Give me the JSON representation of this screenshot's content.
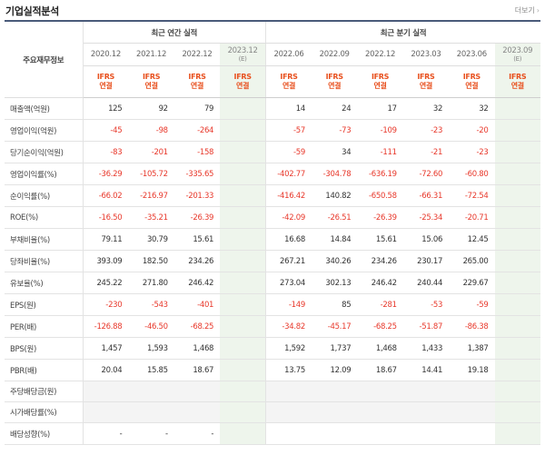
{
  "section_title": "기업실적분석",
  "more_label": "더보기",
  "header": {
    "corner_label": "주요재무정보",
    "annual_group": "최근 연간 실적",
    "quarter_group": "최근 분기 실적",
    "estimate_mark": "(E)",
    "ifrs_line1": "IFRS",
    "ifrs_line2": "연결",
    "annual_periods": [
      "2020.12",
      "2021.12",
      "2022.12",
      "2023.12"
    ],
    "quarter_periods": [
      "2022.06",
      "2022.09",
      "2022.12",
      "2023.03",
      "2023.06",
      "2023.09"
    ]
  },
  "rows": [
    {
      "label": "매출액(억원)",
      "annual": [
        "125",
        "92",
        "79",
        ""
      ],
      "quarter": [
        "14",
        "24",
        "17",
        "32",
        "32",
        ""
      ]
    },
    {
      "label": "영업이익(억원)",
      "annual": [
        "-45",
        "-98",
        "-264",
        ""
      ],
      "quarter": [
        "-57",
        "-73",
        "-109",
        "-23",
        "-20",
        ""
      ]
    },
    {
      "label": "당기순이익(억원)",
      "annual": [
        "-83",
        "-201",
        "-158",
        ""
      ],
      "quarter": [
        "-59",
        "34",
        "-111",
        "-21",
        "-23",
        ""
      ]
    },
    {
      "label": "영업이익률(%)",
      "annual": [
        "-36.29",
        "-105.72",
        "-335.65",
        ""
      ],
      "quarter": [
        "-402.77",
        "-304.78",
        "-636.19",
        "-72.60",
        "-60.80",
        ""
      ]
    },
    {
      "label": "순이익률(%)",
      "annual": [
        "-66.02",
        "-216.97",
        "-201.33",
        ""
      ],
      "quarter": [
        "-416.42",
        "140.82",
        "-650.58",
        "-66.31",
        "-72.54",
        ""
      ]
    },
    {
      "label": "ROE(%)",
      "annual": [
        "-16.50",
        "-35.21",
        "-26.39",
        ""
      ],
      "quarter": [
        "-42.09",
        "-26.51",
        "-26.39",
        "-25.34",
        "-20.71",
        ""
      ]
    },
    {
      "label": "부채비율(%)",
      "annual": [
        "79.11",
        "30.79",
        "15.61",
        ""
      ],
      "quarter": [
        "16.68",
        "14.84",
        "15.61",
        "15.06",
        "12.45",
        ""
      ]
    },
    {
      "label": "당좌비율(%)",
      "annual": [
        "393.09",
        "182.50",
        "234.26",
        ""
      ],
      "quarter": [
        "267.21",
        "340.26",
        "234.26",
        "230.17",
        "265.00",
        ""
      ]
    },
    {
      "label": "유보율(%)",
      "annual": [
        "245.22",
        "271.80",
        "246.42",
        ""
      ],
      "quarter": [
        "273.04",
        "302.13",
        "246.42",
        "240.44",
        "229.67",
        ""
      ]
    },
    {
      "label": "EPS(원)",
      "annual": [
        "-230",
        "-543",
        "-401",
        ""
      ],
      "quarter": [
        "-149",
        "85",
        "-281",
        "-53",
        "-59",
        ""
      ]
    },
    {
      "label": "PER(배)",
      "annual": [
        "-126.88",
        "-46.50",
        "-68.25",
        ""
      ],
      "quarter": [
        "-34.82",
        "-45.17",
        "-68.25",
        "-51.87",
        "-86.38",
        ""
      ]
    },
    {
      "label": "BPS(원)",
      "annual": [
        "1,457",
        "1,593",
        "1,468",
        ""
      ],
      "quarter": [
        "1,592",
        "1,737",
        "1,468",
        "1,433",
        "1,387",
        ""
      ]
    },
    {
      "label": "PBR(배)",
      "annual": [
        "20.04",
        "15.85",
        "18.67",
        ""
      ],
      "quarter": [
        "13.75",
        "12.09",
        "18.67",
        "14.41",
        "19.18",
        ""
      ]
    },
    {
      "label": "주당배당금(원)",
      "blank": true,
      "annual": [
        "",
        "",
        "",
        ""
      ],
      "quarter": [
        "",
        "",
        "",
        "",
        "",
        ""
      ]
    },
    {
      "label": "시가배당률(%)",
      "blank": true,
      "annual": [
        "",
        "",
        "",
        ""
      ],
      "quarter": [
        "",
        "",
        "",
        "",
        "",
        ""
      ]
    },
    {
      "label": "배당성향(%)",
      "annual": [
        "-",
        "-",
        "-",
        ""
      ],
      "quarter": [
        "",
        "",
        "",
        "",
        "",
        ""
      ]
    }
  ],
  "colors": {
    "negative": "#e8382b",
    "ifrs": "#e8501e",
    "estimate_bg": "#eef5ec",
    "header_rule": "#4a5a7a"
  }
}
